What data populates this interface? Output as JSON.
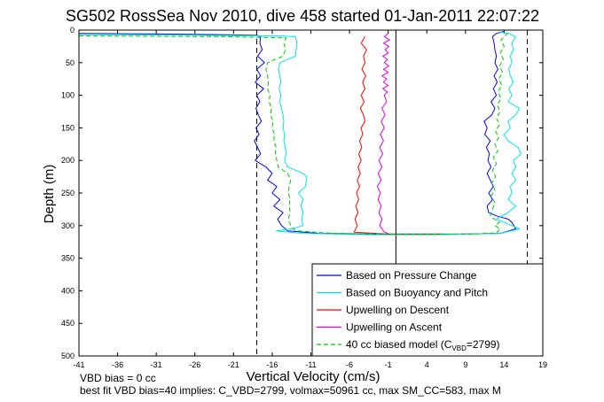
{
  "chart_data": {
    "type": "line",
    "title": "SG502 RossSea Nov 2010, dive 458 started 01-Jan-2011 22:07:22",
    "xlabel": "Vertical Velocity (cm/s)",
    "ylabel": "Depth (m)",
    "xlim": [
      -41,
      19
    ],
    "ylim": [
      0,
      500
    ],
    "y_reversed": true,
    "x_ticks": [
      -41,
      -36,
      -31,
      -26,
      -21,
      -16,
      -11,
      -6,
      -1,
      4,
      9,
      14,
      19
    ],
    "y_ticks": [
      0,
      50,
      100,
      150,
      200,
      250,
      300,
      350,
      400,
      450,
      500
    ],
    "grid": false,
    "legend_position": "bottom-right",
    "series": [
      {
        "name": "Based on Pressure Change",
        "color": "#0000ff",
        "style": "solid",
        "points": [
          [
            -41,
            5
          ],
          [
            -30,
            6
          ],
          [
            -22,
            7
          ],
          [
            -18,
            8
          ],
          [
            -17.5,
            10
          ],
          [
            -17.6,
            20
          ],
          [
            -17.3,
            30
          ],
          [
            -17.9,
            40
          ],
          [
            -17.0,
            50
          ],
          [
            -18.0,
            60
          ],
          [
            -17.5,
            70
          ],
          [
            -18.2,
            80
          ],
          [
            -17.1,
            90
          ],
          [
            -18.0,
            100
          ],
          [
            -17.6,
            110
          ],
          [
            -18.1,
            120
          ],
          [
            -17.8,
            130
          ],
          [
            -17.4,
            140
          ],
          [
            -18.1,
            150
          ],
          [
            -17.7,
            160
          ],
          [
            -18.3,
            170
          ],
          [
            -17.9,
            180
          ],
          [
            -17.5,
            190
          ],
          [
            -18.2,
            200
          ],
          [
            -16.8,
            210
          ],
          [
            -16.0,
            220
          ],
          [
            -16.6,
            230
          ],
          [
            -15.4,
            240
          ],
          [
            -16.0,
            250
          ],
          [
            -15.0,
            260
          ],
          [
            -15.8,
            270
          ],
          [
            -14.6,
            280
          ],
          [
            -15.3,
            290
          ],
          [
            -14.8,
            300
          ],
          [
            -14.0,
            308
          ],
          [
            -10,
            312
          ],
          [
            -3,
            313
          ],
          [
            8,
            313
          ],
          [
            13.5,
            312
          ],
          [
            15.5,
            305
          ],
          [
            15.0,
            295
          ],
          [
            14.5,
            290
          ],
          [
            13.0,
            285
          ],
          [
            12.0,
            280
          ],
          [
            11.8,
            270
          ],
          [
            12.5,
            260
          ],
          [
            12.0,
            250
          ],
          [
            12.6,
            240
          ],
          [
            12.2,
            230
          ],
          [
            11.8,
            220
          ],
          [
            12.3,
            210
          ],
          [
            11.9,
            200
          ],
          [
            12.1,
            190
          ],
          [
            11.7,
            180
          ],
          [
            12.2,
            170
          ],
          [
            11.5,
            160
          ],
          [
            11.8,
            150
          ],
          [
            11.4,
            140
          ],
          [
            12.4,
            130
          ],
          [
            12.8,
            120
          ],
          [
            12.3,
            110
          ],
          [
            13.0,
            100
          ],
          [
            12.6,
            90
          ],
          [
            13.1,
            80
          ],
          [
            12.7,
            70
          ],
          [
            13.2,
            60
          ],
          [
            12.8,
            50
          ],
          [
            13.0,
            40
          ],
          [
            12.8,
            30
          ],
          [
            12.7,
            20
          ],
          [
            12.5,
            10
          ],
          [
            13.0,
            5
          ],
          [
            14.0,
            2
          ]
        ]
      },
      {
        "name": "Based on Buoyancy and Pitch",
        "color": "#00e5e5",
        "style": "solid",
        "points": [
          [
            -41,
            7
          ],
          [
            -25,
            8
          ],
          [
            -15,
            9
          ],
          [
            -13.0,
            10
          ],
          [
            -12.8,
            20
          ],
          [
            -12.9,
            30
          ],
          [
            -13.0,
            40
          ],
          [
            -15.0,
            50
          ],
          [
            -15.2,
            60
          ],
          [
            -15.0,
            70
          ],
          [
            -14.9,
            80
          ],
          [
            -15.1,
            90
          ],
          [
            -14.9,
            100
          ],
          [
            -15.0,
            110
          ],
          [
            -14.8,
            120
          ],
          [
            -14.6,
            130
          ],
          [
            -14.5,
            140
          ],
          [
            -14.6,
            150
          ],
          [
            -14.4,
            160
          ],
          [
            -14.5,
            170
          ],
          [
            -14.3,
            180
          ],
          [
            -14.2,
            190
          ],
          [
            -14.4,
            200
          ],
          [
            -14.0,
            210
          ],
          [
            -12.0,
            220
          ],
          [
            -11.5,
            225
          ],
          [
            -11.7,
            240
          ],
          [
            -12.6,
            250
          ],
          [
            -12.0,
            260
          ],
          [
            -12.3,
            270
          ],
          [
            -12.0,
            280
          ],
          [
            -12.2,
            290
          ],
          [
            -12.0,
            300
          ],
          [
            -13.5,
            305
          ],
          [
            -15.5,
            308
          ],
          [
            -12.0,
            312
          ],
          [
            -3,
            314
          ],
          [
            5,
            314
          ],
          [
            9,
            313
          ],
          [
            13.5,
            312
          ],
          [
            16.0,
            305
          ],
          [
            15.0,
            300
          ],
          [
            14.0,
            295
          ],
          [
            13.0,
            290
          ],
          [
            14.5,
            280
          ],
          [
            15.5,
            270
          ],
          [
            14.5,
            260
          ],
          [
            15.0,
            250
          ],
          [
            14.8,
            240
          ],
          [
            15.5,
            230
          ],
          [
            15.0,
            220
          ],
          [
            15.5,
            210
          ],
          [
            15.2,
            200
          ],
          [
            16.2,
            190
          ],
          [
            15.8,
            180
          ],
          [
            14.5,
            170
          ],
          [
            14.0,
            160
          ],
          [
            14.8,
            150
          ],
          [
            14.5,
            140
          ],
          [
            15.5,
            130
          ],
          [
            16.0,
            120
          ],
          [
            14.5,
            110
          ],
          [
            15.0,
            100
          ],
          [
            14.6,
            90
          ],
          [
            15.2,
            80
          ],
          [
            14.8,
            70
          ],
          [
            14.6,
            60
          ],
          [
            15.0,
            50
          ],
          [
            14.8,
            40
          ],
          [
            15.2,
            30
          ],
          [
            15.0,
            20
          ],
          [
            15.5,
            10
          ],
          [
            14.6,
            5
          ],
          [
            13.5,
            3
          ]
        ]
      },
      {
        "name": "Upwelling on Descent",
        "color": "#ff0000",
        "style": "solid",
        "points": [
          [
            -4.0,
            10
          ],
          [
            -4.5,
            20
          ],
          [
            -3.8,
            30
          ],
          [
            -4.2,
            40
          ],
          [
            -4.0,
            50
          ],
          [
            -4.4,
            60
          ],
          [
            -3.9,
            70
          ],
          [
            -4.3,
            80
          ],
          [
            -4.0,
            90
          ],
          [
            -4.5,
            100
          ],
          [
            -4.1,
            110
          ],
          [
            -4.6,
            120
          ],
          [
            -4.2,
            130
          ],
          [
            -4.0,
            140
          ],
          [
            -4.5,
            150
          ],
          [
            -4.3,
            160
          ],
          [
            -4.7,
            170
          ],
          [
            -4.4,
            180
          ],
          [
            -4.8,
            190
          ],
          [
            -4.5,
            200
          ],
          [
            -4.9,
            210
          ],
          [
            -4.6,
            220
          ],
          [
            -5.0,
            230
          ],
          [
            -4.7,
            240
          ],
          [
            -5.1,
            250
          ],
          [
            -4.8,
            260
          ],
          [
            -5.2,
            270
          ],
          [
            -4.9,
            280
          ],
          [
            -5.3,
            290
          ],
          [
            -5.0,
            300
          ],
          [
            -5.4,
            310
          ],
          [
            -1.0,
            313
          ],
          [
            6.0,
            313
          ]
        ]
      },
      {
        "name": "Upwelling on Ascent",
        "color": "#e000e0",
        "style": "solid",
        "points": [
          [
            -1.0,
            5
          ],
          [
            -1.5,
            10
          ],
          [
            -0.8,
            15
          ],
          [
            -1.6,
            20
          ],
          [
            -0.9,
            25
          ],
          [
            -1.4,
            30
          ],
          [
            -1.0,
            35
          ],
          [
            -1.7,
            40
          ],
          [
            -1.1,
            45
          ],
          [
            -1.5,
            50
          ],
          [
            -0.9,
            55
          ],
          [
            -1.6,
            60
          ],
          [
            -1.0,
            65
          ],
          [
            -1.8,
            70
          ],
          [
            -1.2,
            75
          ],
          [
            -1.6,
            80
          ],
          [
            -1.0,
            85
          ],
          [
            -1.7,
            90
          ],
          [
            -1.1,
            95
          ],
          [
            -1.5,
            100
          ],
          [
            -1.2,
            110
          ],
          [
            -1.8,
            120
          ],
          [
            -1.4,
            130
          ],
          [
            -1.9,
            140
          ],
          [
            -1.5,
            150
          ],
          [
            -2.0,
            160
          ],
          [
            -1.6,
            170
          ],
          [
            -2.1,
            180
          ],
          [
            -1.7,
            190
          ],
          [
            -2.2,
            200
          ],
          [
            -1.8,
            210
          ],
          [
            -2.3,
            220
          ],
          [
            -1.9,
            230
          ],
          [
            -2.4,
            240
          ],
          [
            -2.0,
            250
          ],
          [
            -2.3,
            260
          ],
          [
            -1.9,
            270
          ],
          [
            -2.2,
            280
          ],
          [
            -1.8,
            290
          ],
          [
            -2.1,
            300
          ],
          [
            -1.5,
            310
          ],
          [
            -1.0,
            312
          ]
        ]
      },
      {
        "name": "40 cc biased model (C",
        "name_sub": "VBD",
        "name_tail": "=2799)",
        "color": "#00cc00",
        "style": "dashed",
        "points": [
          [
            -41,
            9
          ],
          [
            -22,
            10
          ],
          [
            -14.2,
            12
          ],
          [
            -14.5,
            20
          ],
          [
            -14.3,
            30
          ],
          [
            -14.6,
            40
          ],
          [
            -16.6,
            50
          ],
          [
            -16.8,
            60
          ],
          [
            -16.6,
            70
          ],
          [
            -16.5,
            80
          ],
          [
            -16.6,
            90
          ],
          [
            -16.3,
            100
          ],
          [
            -16.4,
            110
          ],
          [
            -16.1,
            120
          ],
          [
            -16.2,
            130
          ],
          [
            -15.9,
            140
          ],
          [
            -16.0,
            150
          ],
          [
            -15.7,
            160
          ],
          [
            -15.8,
            170
          ],
          [
            -15.5,
            180
          ],
          [
            -15.6,
            190
          ],
          [
            -15.4,
            200
          ],
          [
            -15.2,
            210
          ],
          [
            -14.0,
            220
          ],
          [
            -13.6,
            230
          ],
          [
            -13.8,
            240
          ],
          [
            -13.9,
            250
          ],
          [
            -13.7,
            260
          ],
          [
            -13.8,
            270
          ],
          [
            -13.7,
            280
          ],
          [
            -13.9,
            290
          ],
          [
            -13.6,
            300
          ],
          [
            -13.0,
            308
          ],
          [
            -8,
            312
          ],
          [
            0,
            313
          ],
          [
            10,
            313
          ],
          [
            13.0,
            311
          ],
          [
            13.5,
            305
          ],
          [
            12.8,
            300
          ],
          [
            13.4,
            295
          ],
          [
            12.7,
            290
          ],
          [
            12.2,
            285
          ],
          [
            12.5,
            275
          ],
          [
            12.8,
            265
          ],
          [
            12.3,
            255
          ],
          [
            12.8,
            245
          ],
          [
            12.4,
            235
          ],
          [
            12.9,
            225
          ],
          [
            12.5,
            215
          ],
          [
            13.0,
            205
          ],
          [
            12.6,
            195
          ],
          [
            13.2,
            185
          ],
          [
            12.8,
            175
          ],
          [
            13.3,
            165
          ],
          [
            12.9,
            155
          ],
          [
            13.4,
            145
          ],
          [
            13.0,
            135
          ],
          [
            13.5,
            125
          ],
          [
            13.1,
            115
          ],
          [
            13.6,
            105
          ],
          [
            13.2,
            95
          ],
          [
            13.7,
            85
          ],
          [
            13.3,
            75
          ],
          [
            13.8,
            65
          ],
          [
            13.4,
            55
          ],
          [
            13.9,
            45
          ],
          [
            13.5,
            35
          ],
          [
            14.0,
            25
          ],
          [
            13.6,
            15
          ],
          [
            14.2,
            8
          ],
          [
            14.5,
            4
          ]
        ]
      }
    ],
    "reference_lines": [
      {
        "x": 0,
        "color": "#000000",
        "style": "solid"
      },
      {
        "x": -18,
        "color": "#000000",
        "style": "dashed"
      },
      {
        "x": 17,
        "color": "#000000",
        "style": "dashed"
      }
    ],
    "notes": [
      "VBD bias = 0 cc",
      "best fit VBD bias=40 implies: C_VBD=2799, volmax=50961 cc, max SM_CC=583, max M"
    ]
  }
}
